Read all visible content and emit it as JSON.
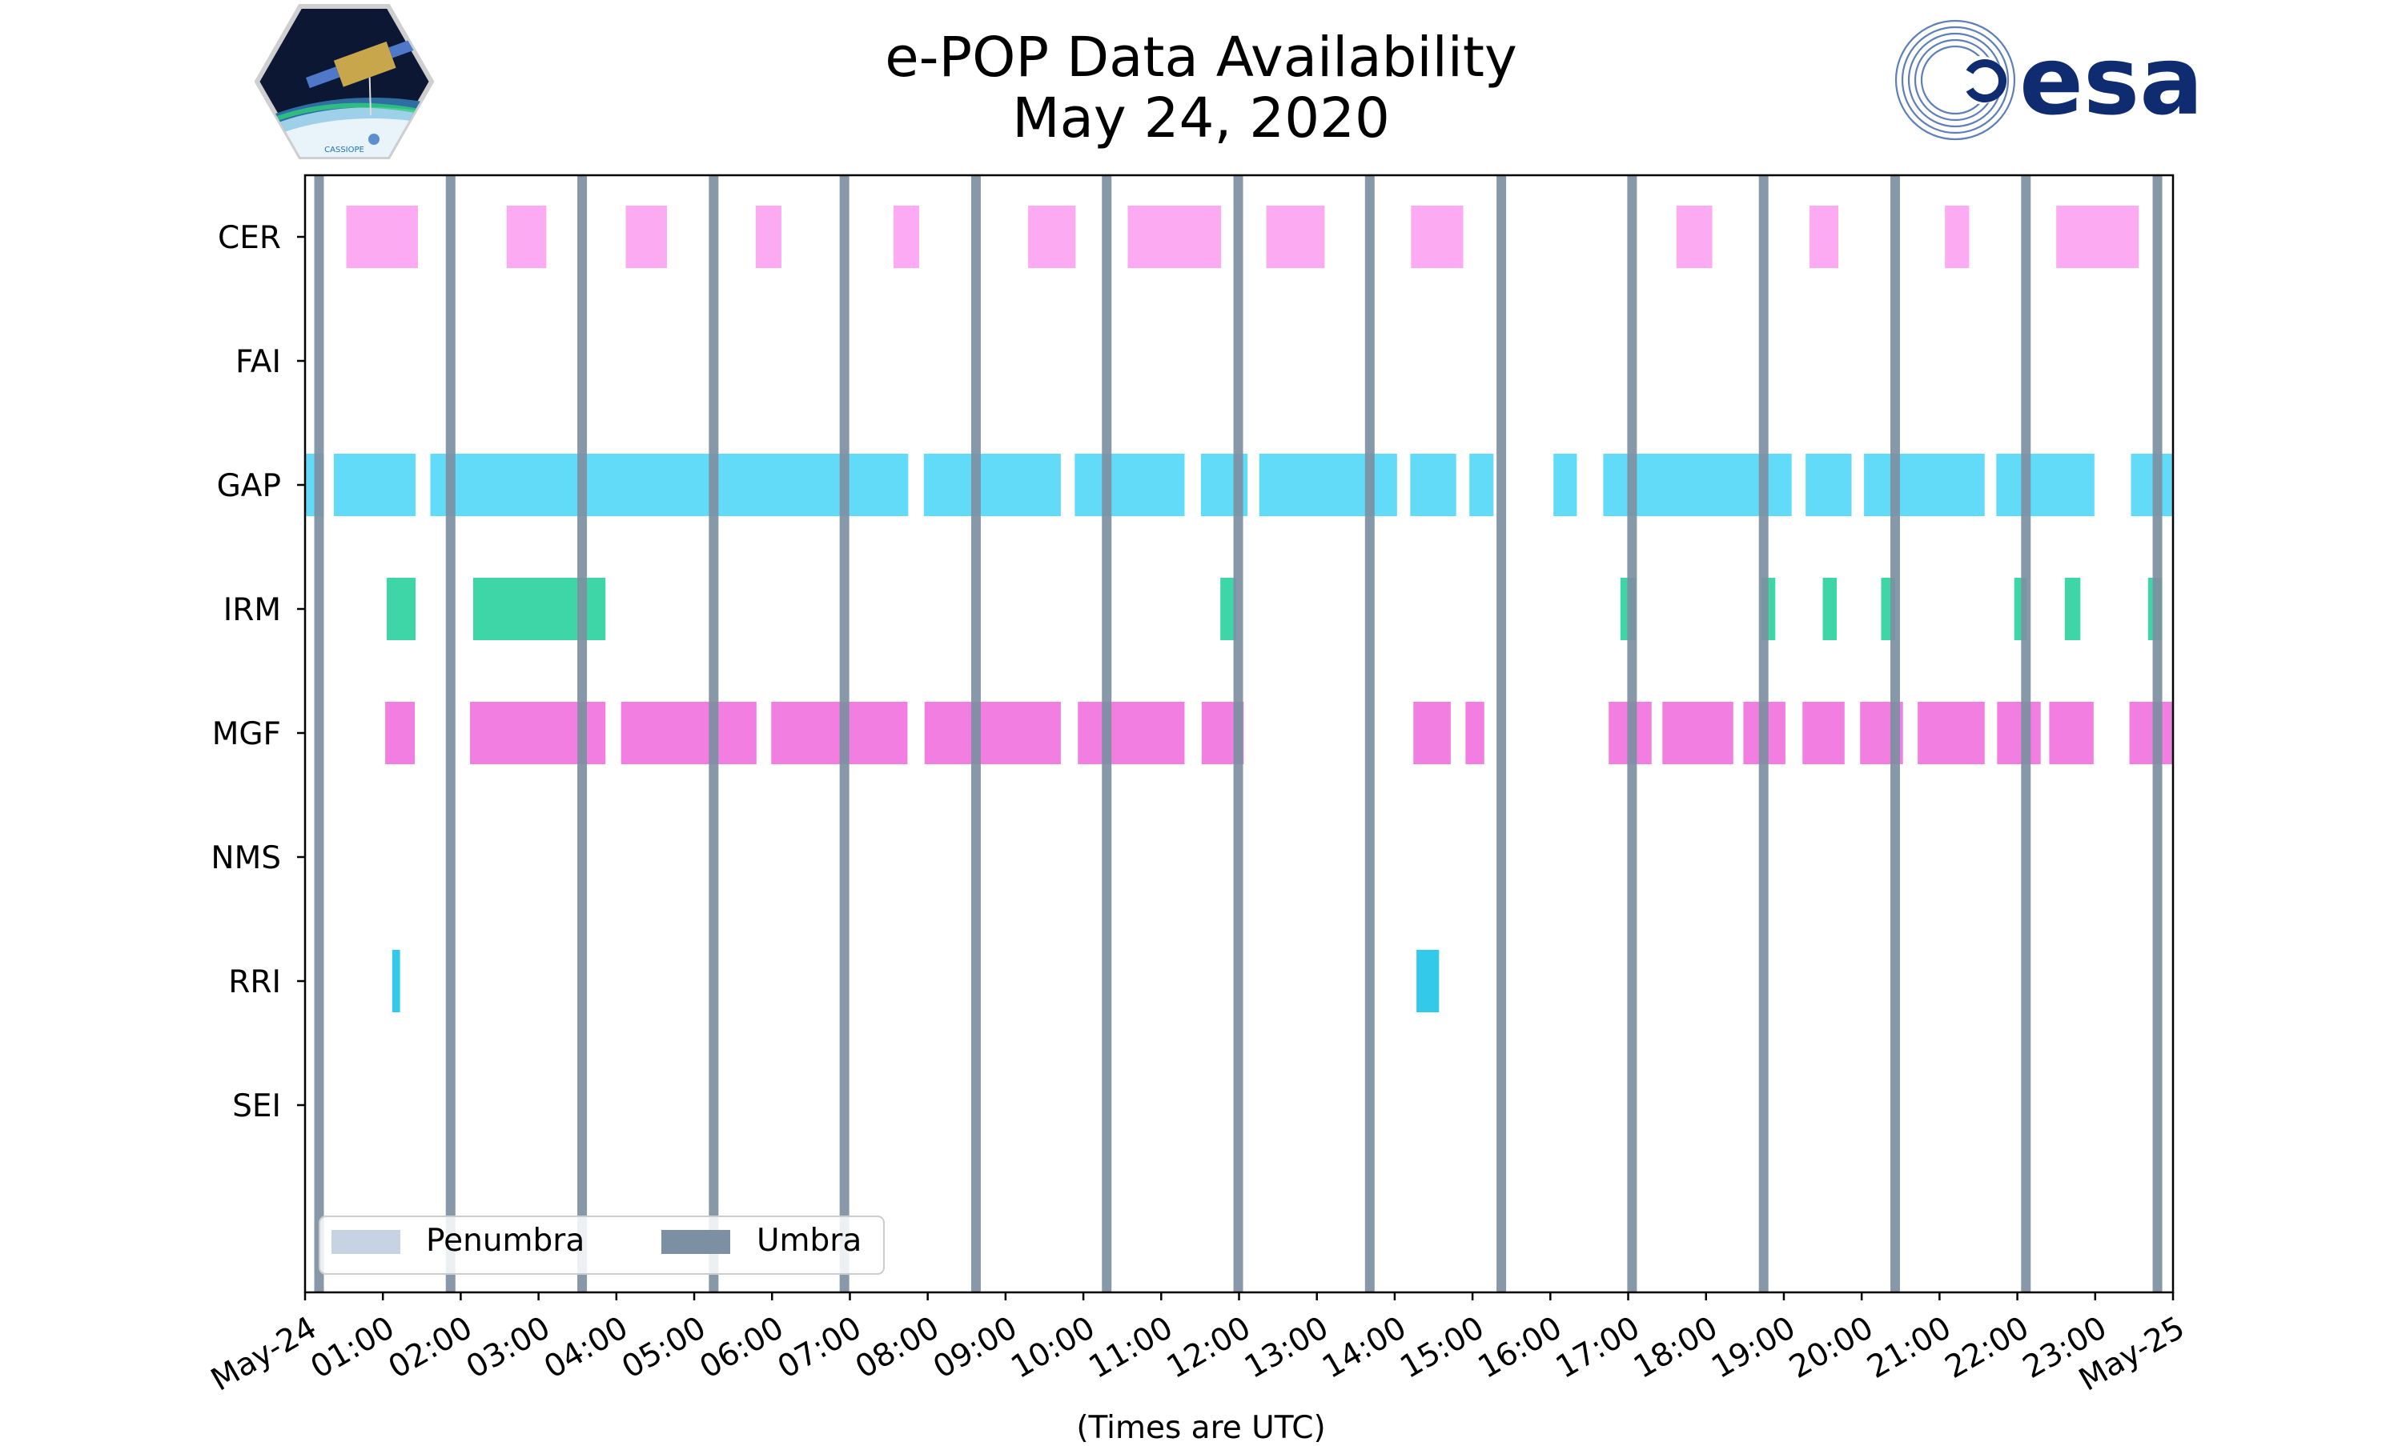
{
  "chart_data": {
    "type": "timeline",
    "title": "e-POP Data Availability",
    "subtitle": "May 24, 2020",
    "xlabel": "(Times are UTC)",
    "xlim_hours": [
      0,
      24
    ],
    "x_ticks": [
      {
        "h": 0,
        "label": "May-24"
      },
      {
        "h": 1,
        "label": "01:00"
      },
      {
        "h": 2,
        "label": "02:00"
      },
      {
        "h": 3,
        "label": "03:00"
      },
      {
        "h": 4,
        "label": "04:00"
      },
      {
        "h": 5,
        "label": "05:00"
      },
      {
        "h": 6,
        "label": "06:00"
      },
      {
        "h": 7,
        "label": "07:00"
      },
      {
        "h": 8,
        "label": "08:00"
      },
      {
        "h": 9,
        "label": "09:00"
      },
      {
        "h": 10,
        "label": "10:00"
      },
      {
        "h": 11,
        "label": "11:00"
      },
      {
        "h": 12,
        "label": "12:00"
      },
      {
        "h": 13,
        "label": "13:00"
      },
      {
        "h": 14,
        "label": "14:00"
      },
      {
        "h": 15,
        "label": "15:00"
      },
      {
        "h": 16,
        "label": "16:00"
      },
      {
        "h": 17,
        "label": "17:00"
      },
      {
        "h": 18,
        "label": "18:00"
      },
      {
        "h": 19,
        "label": "19:00"
      },
      {
        "h": 20,
        "label": "20:00"
      },
      {
        "h": 21,
        "label": "21:00"
      },
      {
        "h": 22,
        "label": "22:00"
      },
      {
        "h": 23,
        "label": "23:00"
      },
      {
        "h": 24,
        "label": "May-25"
      }
    ],
    "categories": [
      "CER",
      "FAI",
      "GAP",
      "IRM",
      "MGF",
      "NMS",
      "RRI",
      "SEI"
    ],
    "colors": {
      "CER": "#fb95ee",
      "GAP": "#40d3f7",
      "IRM": "#1ccf98",
      "MGF": "#ef5ad8",
      "RRI": "#0fbfe6",
      "umbra": "#7d8fa2",
      "penumbra": "#c6d3e3"
    },
    "series": [
      {
        "name": "CER",
        "intervals": [
          [
            0.53,
            1.45
          ],
          [
            2.59,
            3.1
          ],
          [
            4.12,
            4.65
          ],
          [
            5.79,
            6.12
          ],
          [
            7.56,
            7.89
          ],
          [
            9.29,
            9.9
          ],
          [
            10.57,
            11.77
          ],
          [
            12.35,
            13.1
          ],
          [
            14.21,
            14.88
          ],
          [
            17.62,
            18.08
          ],
          [
            19.33,
            19.7
          ],
          [
            21.07,
            21.38
          ],
          [
            22.5,
            23.56
          ]
        ],
        "opacity": 0.8
      },
      {
        "name": "FAI",
        "intervals": []
      },
      {
        "name": "GAP",
        "intervals": [
          [
            0,
            0.24
          ],
          [
            0.37,
            1.42
          ],
          [
            1.61,
            7.75
          ],
          [
            7.95,
            9.71
          ],
          [
            9.89,
            11.3
          ],
          [
            11.51,
            12.11
          ],
          [
            12.26,
            14.03
          ],
          [
            14.2,
            14.79
          ],
          [
            14.96,
            15.27
          ],
          [
            16.04,
            16.34
          ],
          [
            16.68,
            19.1
          ],
          [
            19.28,
            19.87
          ],
          [
            20.03,
            21.58
          ],
          [
            21.73,
            22.99
          ],
          [
            23.46,
            24
          ]
        ],
        "opacity": 0.82
      },
      {
        "name": "IRM",
        "intervals": [
          [
            1.05,
            1.42
          ],
          [
            2.16,
            3.86
          ],
          [
            11.76,
            11.96
          ],
          [
            16.9,
            17.1
          ],
          [
            18.71,
            18.89
          ],
          [
            19.5,
            19.68
          ],
          [
            20.25,
            20.43
          ],
          [
            21.96,
            22.12
          ],
          [
            22.61,
            22.81
          ],
          [
            23.68,
            23.86
          ]
        ],
        "opacity": 0.85
      },
      {
        "name": "MGF",
        "intervals": [
          [
            1.03,
            1.41
          ],
          [
            2.12,
            3.86
          ],
          [
            4.06,
            5.8
          ],
          [
            5.99,
            7.74
          ],
          [
            7.96,
            9.71
          ],
          [
            9.93,
            11.3
          ],
          [
            11.52,
            12.06
          ],
          [
            14.24,
            14.72
          ],
          [
            14.91,
            15.15
          ],
          [
            16.75,
            17.3
          ],
          [
            17.44,
            18.35
          ],
          [
            18.48,
            19.02
          ],
          [
            19.24,
            19.78
          ],
          [
            19.98,
            20.53
          ],
          [
            20.72,
            21.58
          ],
          [
            21.74,
            22.3
          ],
          [
            22.41,
            22.98
          ],
          [
            23.44,
            24
          ]
        ],
        "opacity": 0.78
      },
      {
        "name": "NMS",
        "intervals": []
      },
      {
        "name": "RRI",
        "intervals": [
          [
            1.12,
            1.22
          ],
          [
            14.28,
            14.57
          ]
        ],
        "opacity": 0.85
      },
      {
        "name": "SEI",
        "intervals": []
      }
    ],
    "umbra": [
      0.18,
      1.87,
      3.56,
      5.25,
      6.93,
      8.62,
      10.3,
      11.99,
      13.68,
      15.37,
      17.05,
      18.74,
      20.43,
      22.11,
      23.8
    ],
    "penumbra": [],
    "legend": {
      "position": "lower-left",
      "entries": [
        {
          "label": "Penumbra",
          "key": "penumbra"
        },
        {
          "label": "Umbra",
          "key": "umbra"
        }
      ]
    }
  },
  "logos": {
    "left_text": "CASSIOPE",
    "right_text": "esa"
  }
}
